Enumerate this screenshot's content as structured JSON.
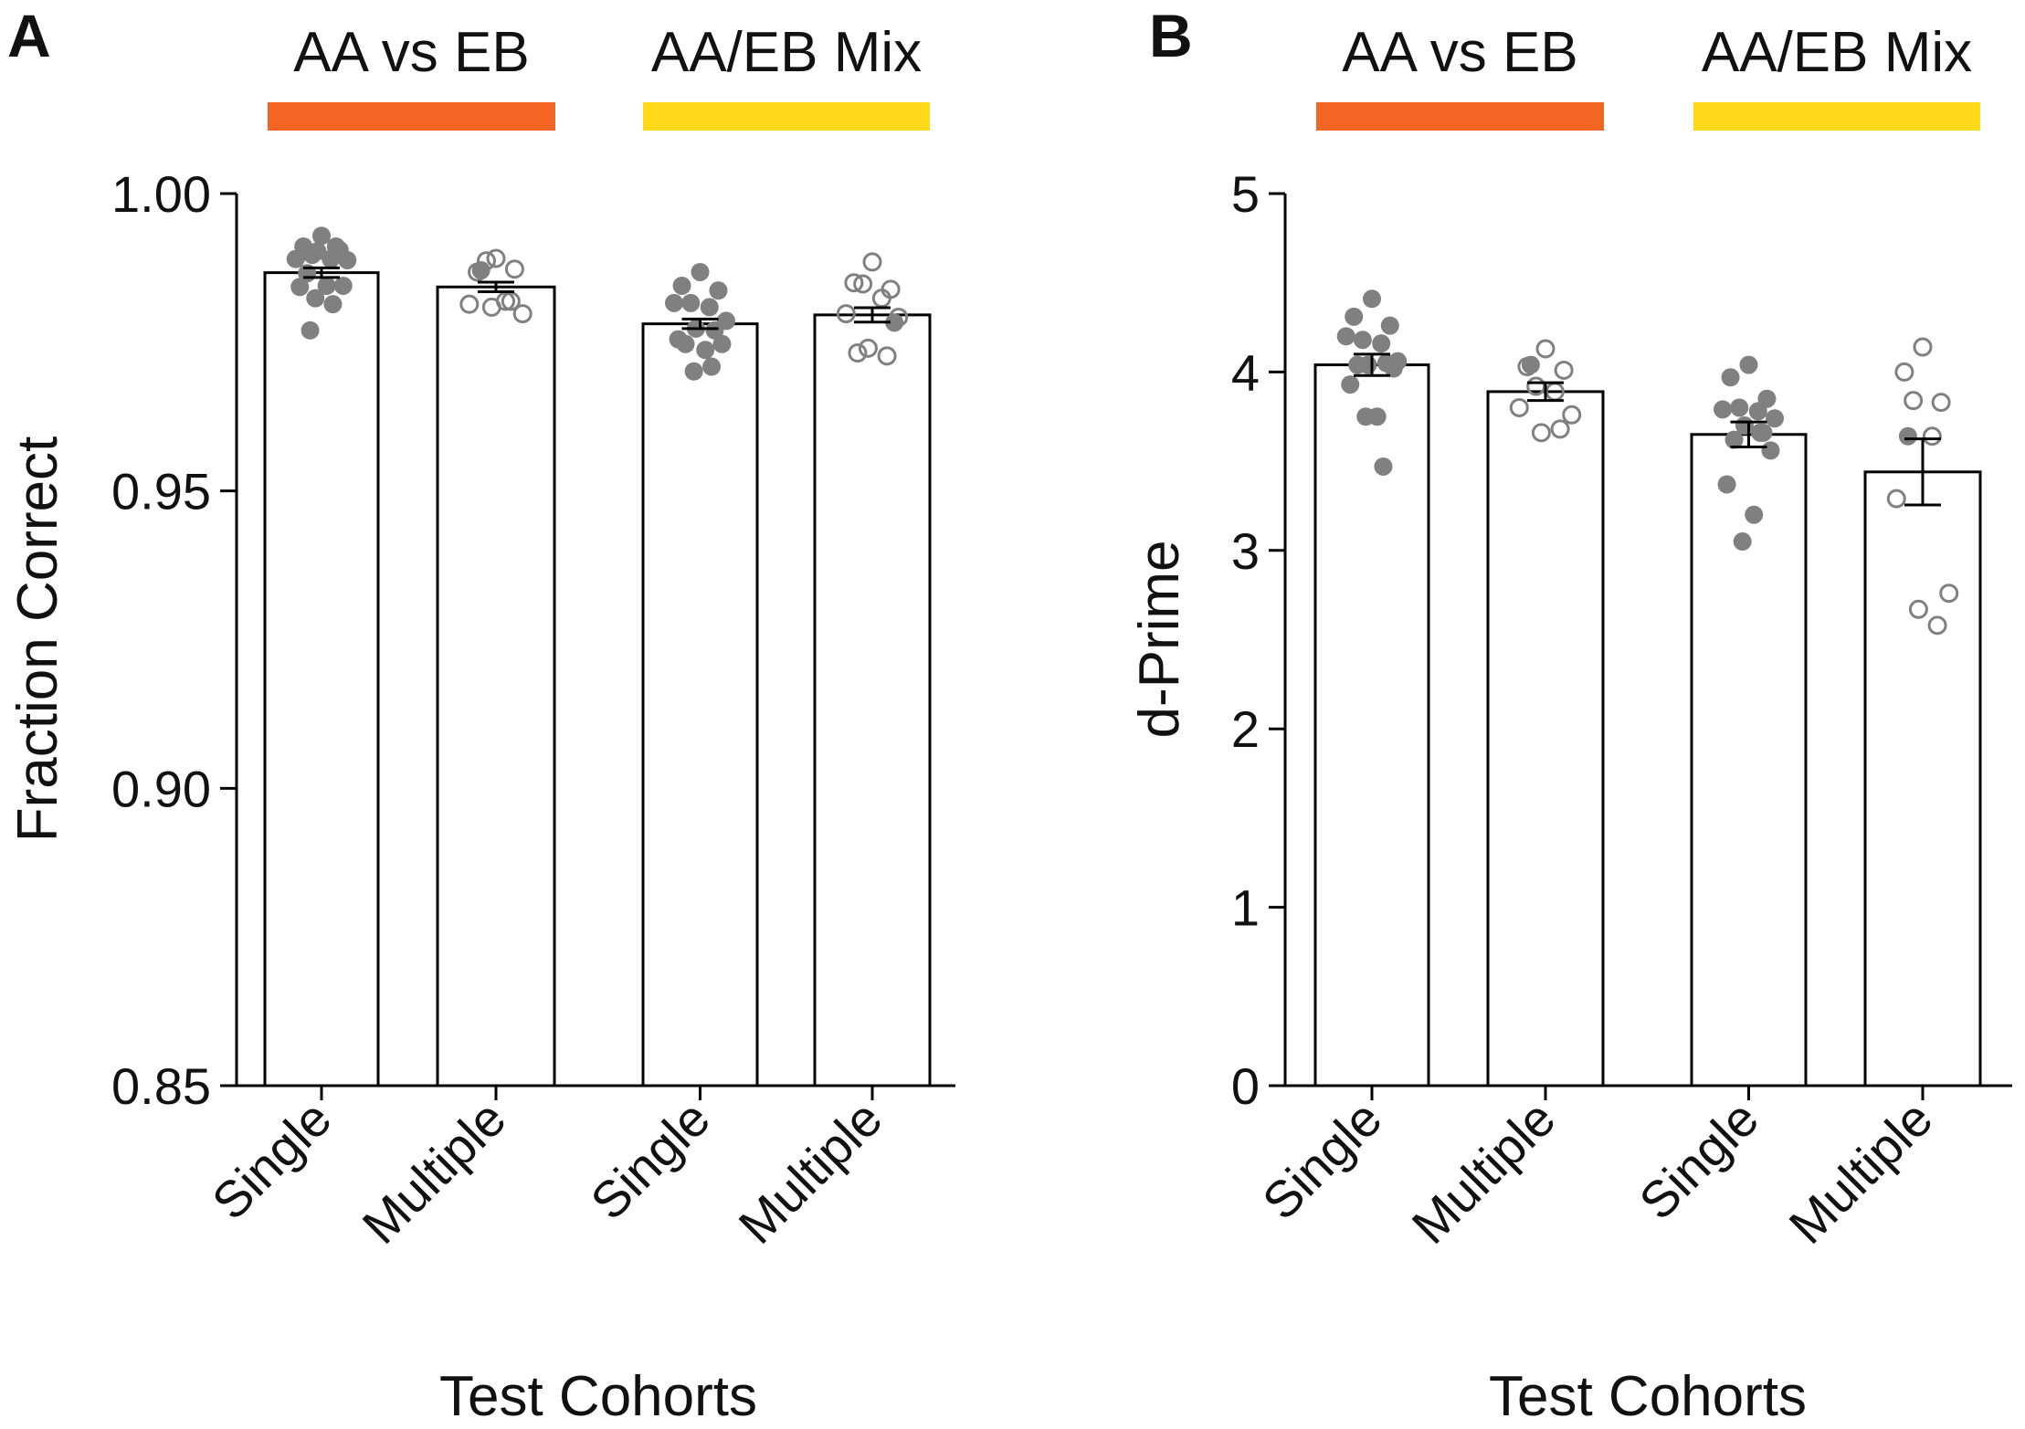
{
  "chart_data": [
    {
      "type": "bar",
      "panel_label": "A",
      "ylabel": "Fraction Correct",
      "xlabel": "Test Cohorts",
      "ylim": [
        0.85,
        1.0
      ],
      "yticks": [
        "0.85",
        "0.90",
        "0.95",
        "1.00"
      ],
      "ytick_values": [
        0.85,
        0.9,
        0.95,
        1.0
      ],
      "groups": [
        {
          "title": "AA vs EB",
          "color": "#F26522"
        },
        {
          "title": "AA/EB Mix",
          "color": "#FFD91A"
        }
      ],
      "categories": [
        "Single",
        "Multiple",
        "Single",
        "Multiple"
      ],
      "values": [
        0.9867,
        0.9843,
        0.9781,
        0.9796
      ],
      "errors": [
        0.0008,
        0.0008,
        0.0008,
        0.0012
      ],
      "points": [
        {
          "filled": true,
          "values": [
            0.9929,
            0.9911,
            0.9905,
            0.9897,
            0.989,
            0.989,
            0.9888,
            0.9903,
            0.9911,
            0.9866,
            0.9845,
            0.9843,
            0.9845,
            0.9824,
            0.9814,
            0.977
          ]
        },
        {
          "filled": false,
          "values": [
            0.9891,
            0.9868,
            0.9873,
            0.9887,
            0.9819,
            0.9814,
            0.9798,
            0.9809,
            0.9819
          ],
          "filled_values": [
            0.9871
          ]
        },
        {
          "filled": true,
          "values": [
            0.9868,
            0.9845,
            0.9837,
            0.9816,
            0.9809,
            0.9816,
            0.9786,
            0.9773,
            0.977,
            0.9747,
            0.9747,
            0.9755,
            0.9737,
            0.9701,
            0.9709
          ]
        },
        {
          "filled": false,
          "values": [
            0.9885,
            0.985,
            0.9839,
            0.9848,
            0.9824,
            0.9798,
            0.9792,
            0.974,
            0.9727,
            0.9732
          ],
          "filled_values": [
            0.9783
          ]
        }
      ]
    },
    {
      "type": "bar",
      "panel_label": "B",
      "ylabel": "d-Prime",
      "xlabel": "Test Cohorts",
      "ylim": [
        0,
        5
      ],
      "yticks": [
        "0",
        "1",
        "2",
        "3",
        "4",
        "5"
      ],
      "ytick_values": [
        0,
        1,
        2,
        3,
        4,
        5
      ],
      "groups": [
        {
          "title": "AA vs EB",
          "color": "#F26522"
        },
        {
          "title": "AA/EB Mix",
          "color": "#FFD91A"
        }
      ],
      "categories": [
        "Single",
        "Multiple",
        "Single",
        "Multiple"
      ],
      "values": [
        4.04,
        3.89,
        3.65,
        3.44
      ],
      "errors": [
        0.06,
        0.05,
        0.07,
        0.185
      ],
      "points": [
        {
          "filled": true,
          "values": [
            4.41,
            4.31,
            4.26,
            4.18,
            4.16,
            4.2,
            4.06,
            4.04,
            4.05,
            4.04,
            4.02,
            3.93,
            3.75,
            3.75,
            3.47
          ]
        },
        {
          "filled": false,
          "values": [
            4.13,
            4.03,
            4.01,
            3.92,
            3.89,
            3.8,
            3.76,
            3.66,
            3.68
          ],
          "filled_values": [
            4.04
          ]
        },
        {
          "filled": true,
          "values": [
            4.04,
            3.97,
            3.85,
            3.8,
            3.78,
            3.79,
            3.74,
            3.7,
            3.66,
            3.62,
            3.56,
            3.37,
            3.2,
            3.05,
            3.66
          ]
        },
        {
          "filled": false,
          "values": [
            4.14,
            4.0,
            3.83,
            3.84,
            3.64,
            3.29,
            2.76,
            2.67,
            2.58
          ],
          "filled_values": [
            3.64
          ]
        }
      ]
    }
  ]
}
